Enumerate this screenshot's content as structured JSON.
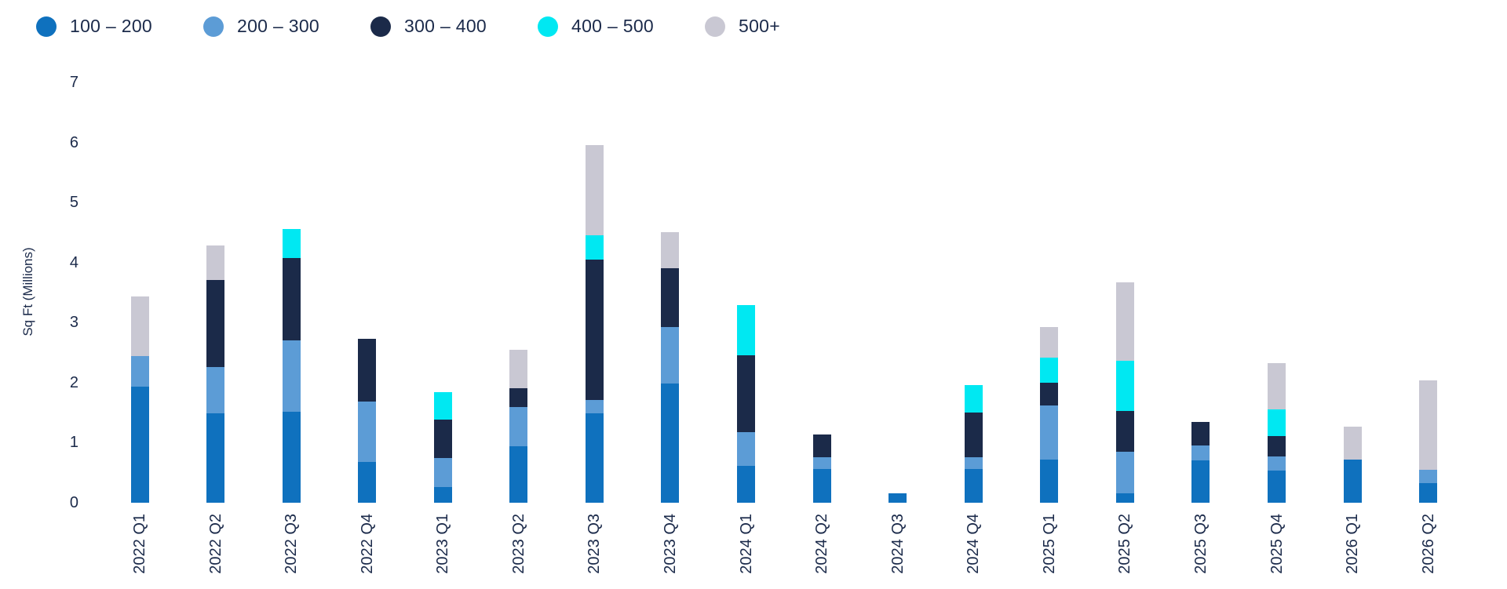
{
  "chart_data": {
    "type": "bar",
    "stacked": true,
    "title": "",
    "xlabel": "",
    "ylabel": "Sq Ft (Millions)",
    "ylim": [
      0,
      7
    ],
    "y_ticks": [
      0,
      1,
      2,
      3,
      4,
      5,
      6,
      7
    ],
    "grid": false,
    "legend_position": "top-left",
    "categories": [
      "2022 Q1",
      "2022 Q2",
      "2022 Q3",
      "2022 Q4",
      "2023 Q1",
      "2023 Q2",
      "2023 Q3",
      "2023 Q4",
      "2024 Q1",
      "2024 Q2",
      "2024 Q3",
      "2024 Q4",
      "2025 Q1",
      "2025 Q2",
      "2025 Q3",
      "2025 Q4",
      "2026 Q1",
      "2026 Q2"
    ],
    "series": [
      {
        "name": "100 – 200",
        "color": "#0f71be",
        "values": [
          1.93,
          1.49,
          1.52,
          0.68,
          0.26,
          0.94,
          1.49,
          1.99,
          0.61,
          0.56,
          0.16,
          0.56,
          0.72,
          0.16,
          0.71,
          0.54,
          0.72,
          0.33
        ]
      },
      {
        "name": "200 – 300",
        "color": "#5c9cd6",
        "values": [
          0.51,
          0.77,
          1.18,
          1.0,
          0.48,
          0.66,
          0.22,
          0.94,
          0.57,
          0.2,
          0,
          0.2,
          0.9,
          0.69,
          0.24,
          0.23,
          0,
          0.22
        ]
      },
      {
        "name": "300 – 400",
        "color": "#1b2a49",
        "values": [
          0,
          1.45,
          1.38,
          1.05,
          0.65,
          0.31,
          2.34,
          0.98,
          1.28,
          0.38,
          0,
          0.74,
          0.38,
          0.68,
          0.4,
          0.34,
          0,
          0
        ]
      },
      {
        "name": "400 – 500",
        "color": "#00e8f2",
        "values": [
          0,
          0,
          0.48,
          0,
          0.45,
          0,
          0.41,
          0,
          0.83,
          0,
          0,
          0.46,
          0.42,
          0.84,
          0,
          0.45,
          0,
          0
        ]
      },
      {
        "name": "500+",
        "color": "#c9c8d3",
        "values": [
          1.0,
          0.58,
          0,
          0,
          0,
          0.64,
          1.49,
          0.6,
          0,
          0,
          0,
          0,
          0.5,
          1.3,
          0,
          0.77,
          0.55,
          1.49
        ]
      }
    ]
  },
  "colors": {
    "text": "#1b2a4a",
    "background": "#ffffff"
  }
}
